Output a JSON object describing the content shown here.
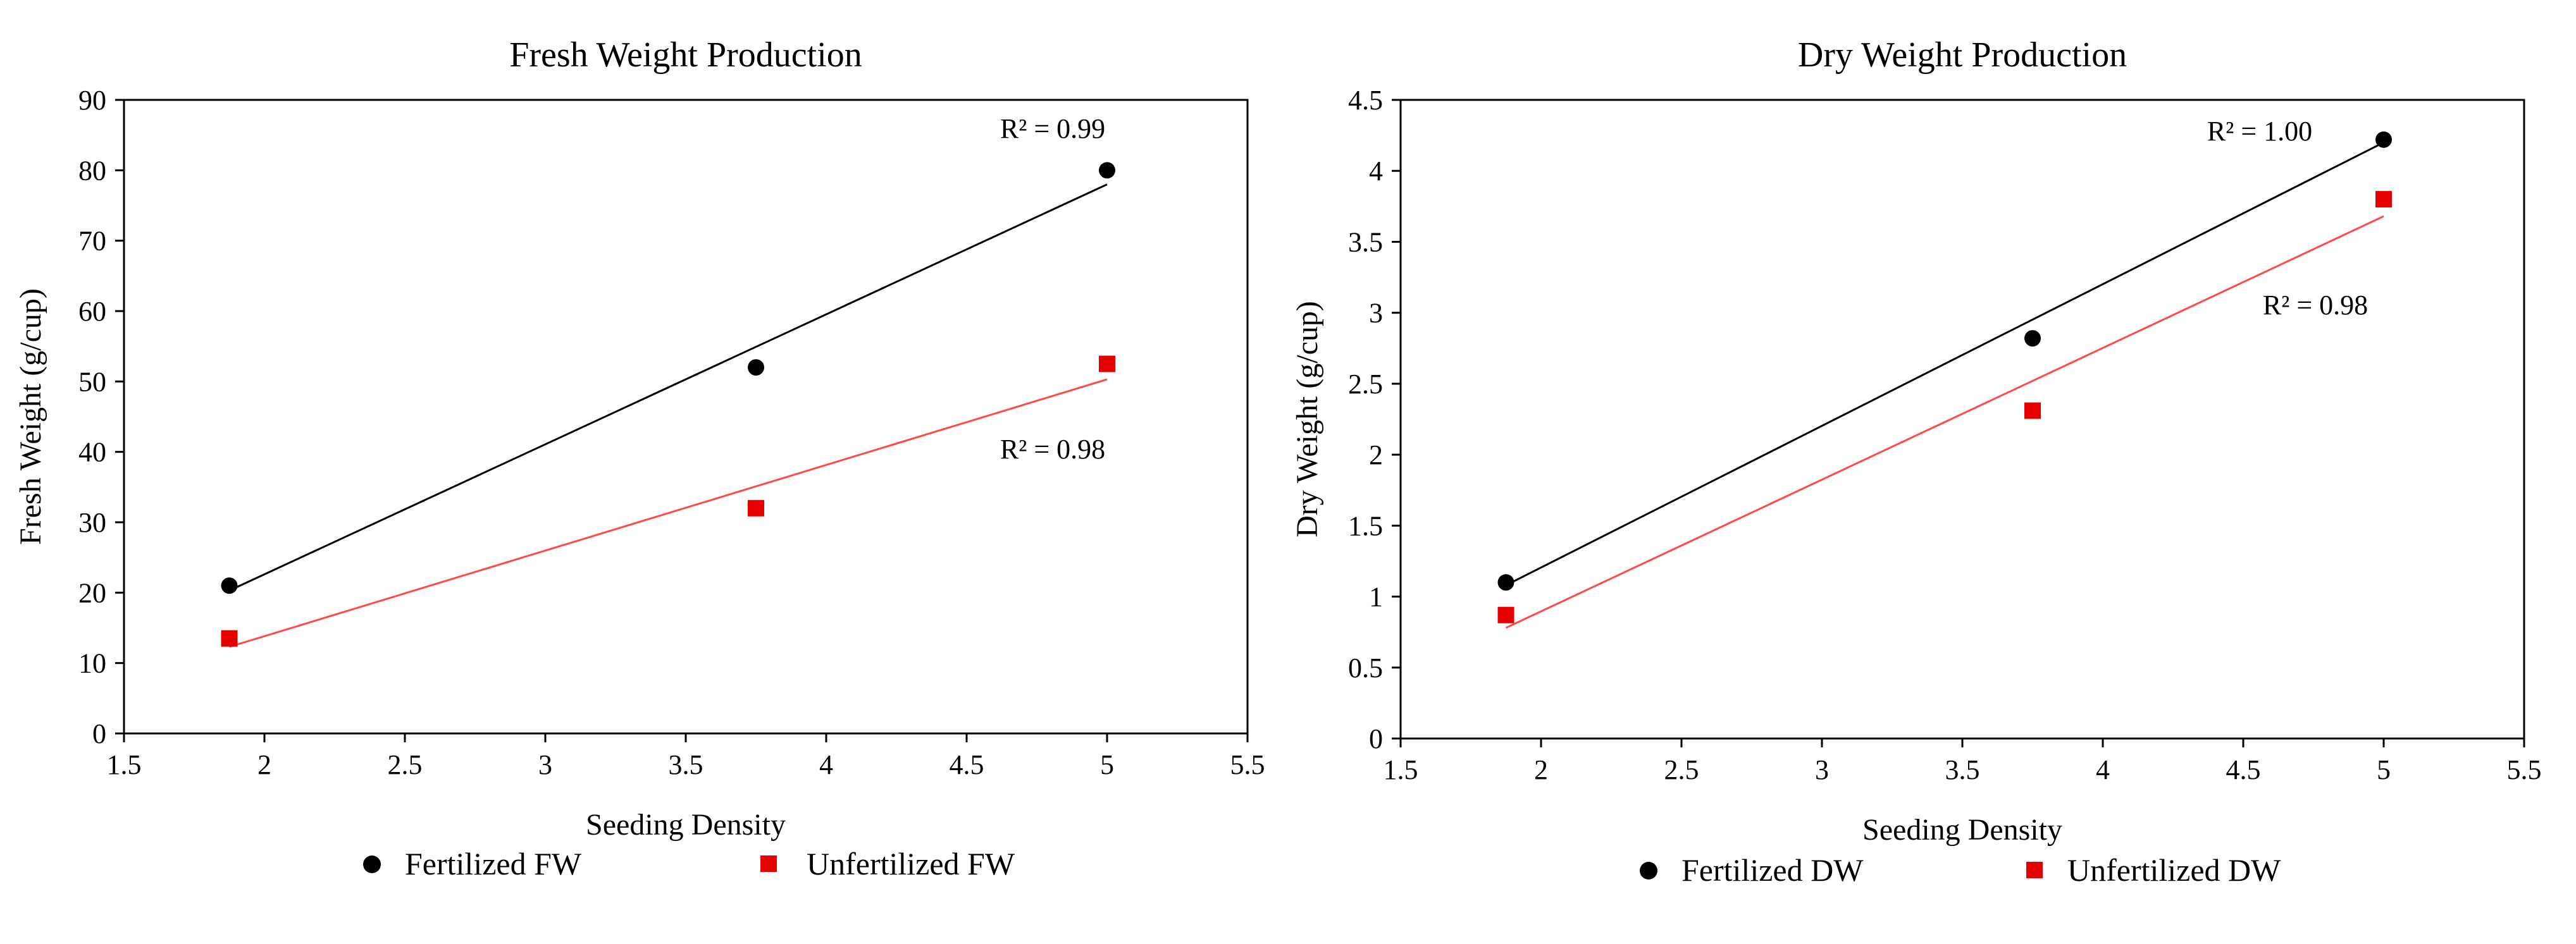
{
  "chart_data": [
    {
      "type": "scatter",
      "title": "Fresh Weight Production",
      "xlabel": "Seeding Density",
      "ylabel": "Fresh Weight (g/cup)",
      "xlim": [
        1.5,
        5.5
      ],
      "ylim": [
        0,
        90
      ],
      "x_ticks": [
        "1.5",
        "2",
        "2.5",
        "3",
        "3.5",
        "4",
        "4.5",
        "5",
        "5.5"
      ],
      "y_ticks": [
        "0",
        "10",
        "20",
        "30",
        "40",
        "50",
        "60",
        "70",
        "80",
        "90"
      ],
      "grid": false,
      "legend_position": "bottom",
      "series": [
        {
          "name": "Fertilized FW",
          "marker": "circle",
          "color": "#000000",
          "x": [
            1.875,
            3.75,
            5.0
          ],
          "y": [
            21,
            52,
            80
          ],
          "trendline": {
            "x": [
              1.875,
              5.0
            ],
            "y": [
              20.3,
              78.0
            ],
            "color": "#000000"
          },
          "r2_label": "R² = 0.99"
        },
        {
          "name": "Unfertilized FW",
          "marker": "square",
          "color": "#e50000",
          "x": [
            1.875,
            3.75,
            5.0
          ],
          "y": [
            13.5,
            32,
            52.5
          ],
          "trendline": {
            "x": [
              1.875,
              5.0
            ],
            "y": [
              12.3,
              50.3
            ],
            "color": "#ff4a4a"
          },
          "r2_label": "R² = 0.98"
        }
      ]
    },
    {
      "type": "scatter",
      "title": "Dry Weight Production",
      "xlabel": "Seeding Density",
      "ylabel": "Dry Weight (g/cup)",
      "xlim": [
        1.5,
        5.5
      ],
      "ylim": [
        0,
        4.5
      ],
      "x_ticks": [
        "1.5",
        "2",
        "2.5",
        "3",
        "3.5",
        "4",
        "4.5",
        "5",
        "5.5"
      ],
      "y_ticks": [
        "0",
        "0.5",
        "1",
        "1.5",
        "2",
        "2.5",
        "3",
        "3.5",
        "4",
        "4.5"
      ],
      "grid": false,
      "legend_position": "bottom",
      "series": [
        {
          "name": "Fertilized DW",
          "marker": "circle",
          "color": "#000000",
          "x": [
            1.875,
            3.75,
            5.0
          ],
          "y": [
            1.1,
            2.82,
            4.22
          ],
          "trendline": {
            "x": [
              1.875,
              5.0
            ],
            "y": [
              1.08,
              4.2
            ],
            "color": "#000000"
          },
          "r2_label": "R² = 1.00"
        },
        {
          "name": "Unfertilized DW",
          "marker": "square",
          "color": "#e50000",
          "x": [
            1.875,
            3.75,
            5.0
          ],
          "y": [
            0.87,
            2.31,
            3.8
          ],
          "trendline": {
            "x": [
              1.875,
              5.0
            ],
            "y": [
              0.78,
              3.68
            ],
            "color": "#ff4a4a"
          },
          "r2_label": "R² = 0.98"
        }
      ]
    }
  ]
}
